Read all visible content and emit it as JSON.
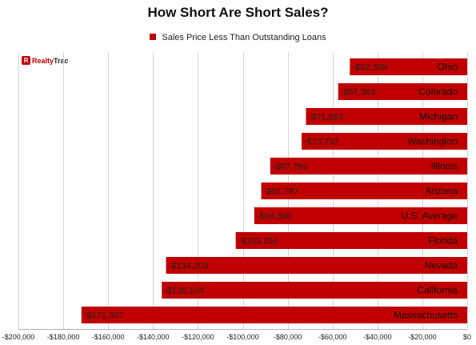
{
  "chart_data": {
    "type": "bar",
    "orientation": "horizontal",
    "title": "How Short Are Short Sales?",
    "legend": "Sales Price Less Than Outstanding Loans",
    "legend_position": "top",
    "series_color": "#c00000",
    "grid": true,
    "xlim": [
      -200000,
      0
    ],
    "x_tick_labels": [
      "-$200,000",
      "-$180,000",
      "-$160,000",
      "-$140,000",
      "-$120,000",
      "-$100,000",
      "-$80,000",
      "-$60,000",
      "-$40,000",
      "-$20,000",
      "$0"
    ],
    "x_ticks": [
      -200000,
      -180000,
      -160000,
      -140000,
      -120000,
      -100000,
      -80000,
      -60000,
      -40000,
      -20000,
      0
    ],
    "categories": [
      "Ohio",
      "Colorado",
      "Michigan",
      "Washington",
      "Illinois",
      "Arizona",
      "U.S. Average",
      "Florida",
      "Nevada",
      "California",
      "Massachusetts"
    ],
    "values": [
      -52309,
      -57503,
      -71863,
      -73792,
      -87769,
      -91787,
      -94896,
      -103156,
      -134203,
      -136104,
      -171907
    ],
    "data_labels": [
      "-$52,309",
      "-$57,503",
      "-$71,863",
      "-$73,792",
      "-$87,769",
      "-$91,787",
      "-$94,896",
      "-$103,156",
      "-$134,203",
      "-$136,104",
      "-$171,907"
    ]
  },
  "logo": {
    "mark": "R",
    "text_red": "Realty",
    "text_black": "Trac"
  }
}
